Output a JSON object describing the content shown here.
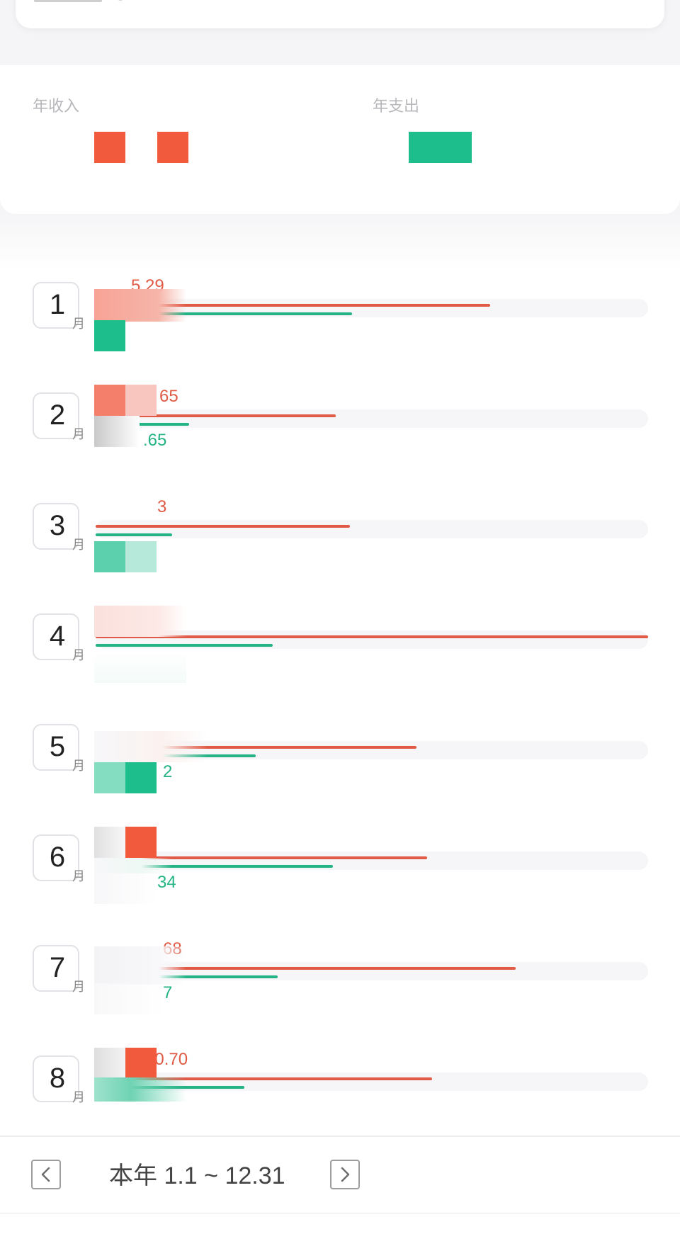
{
  "colors": {
    "income": "#e05a45",
    "expense": "#23b384",
    "income_block": "#f25a3e",
    "expense_block": "#1dbd8c"
  },
  "summary": {
    "income_label": "年收入",
    "expense_label": "年支出"
  },
  "month_suffix": "月",
  "months": [
    {
      "num": "1",
      "income_text": "5.29",
      "expense_text": "",
      "income_ratio": 0.714,
      "expense_ratio": 0.464
    },
    {
      "num": "2",
      "income_text": "65",
      "expense_text": ".65",
      "income_ratio": 0.434,
      "expense_ratio": 0.169
    },
    {
      "num": "3",
      "income_text": "3",
      "expense_text": "",
      "income_ratio": 0.46,
      "expense_ratio": 0.139
    },
    {
      "num": "4",
      "income_text": "",
      "expense_text": "",
      "income_ratio": 1.0,
      "expense_ratio": 0.32
    },
    {
      "num": "5",
      "income_text": "",
      "expense_text": "2",
      "income_ratio": 0.581,
      "expense_ratio": 0.29
    },
    {
      "num": "6",
      "income_text": "",
      "expense_text": "34",
      "income_ratio": 0.6,
      "expense_ratio": 0.43
    },
    {
      "num": "7",
      "income_text": "68",
      "expense_text": "7",
      "income_ratio": 0.76,
      "expense_ratio": 0.329
    },
    {
      "num": "8",
      "income_text": "50.70",
      "expense_text": "",
      "income_ratio": 0.609,
      "expense_ratio": 0.269
    }
  ],
  "date_nav": {
    "range_text": "本年 1.1 ~ 12.31",
    "prev_icon": "chevron-left-icon",
    "next_icon": "chevron-right-icon"
  }
}
